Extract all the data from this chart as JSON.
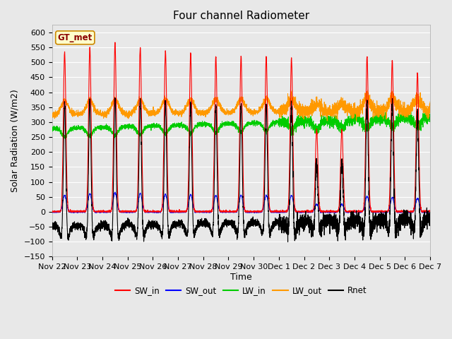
{
  "title": "Four channel Radiometer",
  "xlabel": "Time",
  "ylabel": "Solar Radiation (W/m2)",
  "ylim": [
    -150,
    625
  ],
  "yticks": [
    -150,
    -100,
    -50,
    0,
    50,
    100,
    150,
    200,
    250,
    300,
    350,
    400,
    450,
    500,
    550,
    600
  ],
  "station_label": "GT_met",
  "n_days": 15,
  "colors": {
    "SW_in": "#ff0000",
    "SW_out": "#0000ff",
    "LW_in": "#00cc00",
    "LW_out": "#ff9900",
    "Rnet": "#000000"
  },
  "background_color": "#e8e8e8",
  "grid_color": "#ffffff",
  "title_fontsize": 11,
  "axis_label_fontsize": 9,
  "tick_fontsize": 8,
  "sw_in_peaks": [
    535,
    550,
    565,
    550,
    540,
    530,
    520,
    520,
    520,
    515,
    275,
    275,
    520,
    505,
    465
  ],
  "sw_out_peaks": [
    55,
    60,
    65,
    62,
    58,
    57,
    55,
    55,
    55,
    55,
    25,
    25,
    52,
    48,
    45
  ],
  "tick_labels": [
    "Nov 22",
    "Nov 23",
    "Nov 24",
    "Nov 25",
    "Nov 26",
    "Nov 27",
    "Nov 28",
    "Nov 29",
    "Nov 30",
    "Dec 1",
    "Dec 2",
    "Dec 3",
    "Dec 4",
    "Dec 5",
    "Dec 6",
    "Dec 7"
  ]
}
